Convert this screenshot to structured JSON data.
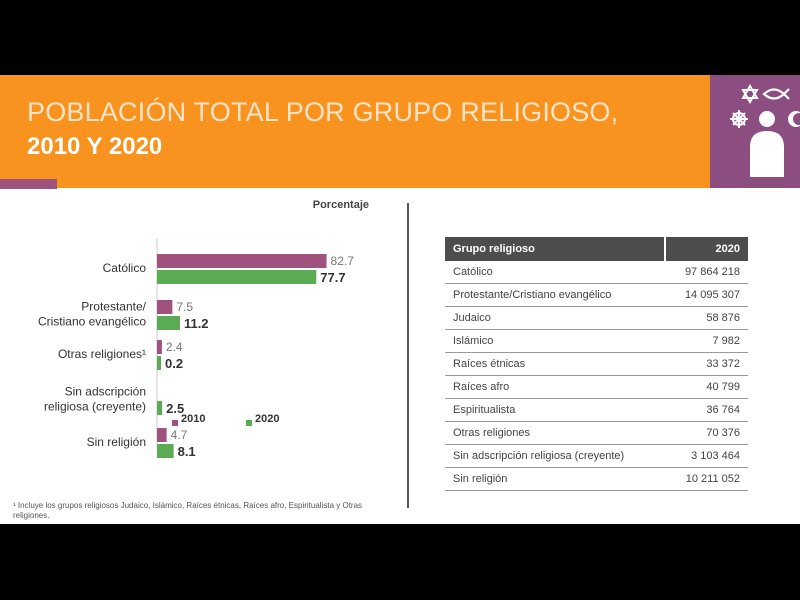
{
  "title": {
    "line1": "POBLACIÓN TOTAL POR GRUPO RELIGIOSO,",
    "line2": "2010 Y 2020"
  },
  "colors": {
    "banner": "#f7931e",
    "accent": "#8c4d80",
    "series_2010": "#a0527f",
    "series_2020": "#5aab54"
  },
  "icons": [
    "star-of-david-icon",
    "christian-fish-icon",
    "dharma-wheel-icon",
    "crescent-icon",
    "person-icon"
  ],
  "chart_data": {
    "type": "bar",
    "orientation": "horizontal",
    "title": "Porcentaje",
    "categories": [
      "Católico",
      "Protestante/ Cristiano evangélico",
      "Otras religiones¹",
      "Sin adscripción religiosa (creyente)",
      "Sin religión"
    ],
    "series": [
      {
        "name": "2010",
        "values": [
          82.7,
          7.5,
          2.4,
          null,
          4.7
        ]
      },
      {
        "name": "2020",
        "values": [
          77.7,
          11.2,
          0.2,
          2.5,
          8.1
        ]
      }
    ],
    "legend": "bottom",
    "grid": false
  },
  "footnote": "¹ Incluye los grupos religiosos Judaico, Islámico, Raíces étnicas, Raíces afro, Espiritualista y Otras religiones.",
  "table": {
    "headers": [
      "Grupo religioso",
      "2020"
    ],
    "rows": [
      [
        "Católico",
        "97 864 218"
      ],
      [
        "Protestante/Cristiano evangélico",
        "14 095 307"
      ],
      [
        "Judaico",
        "58 876"
      ],
      [
        "Islámico",
        "7 982"
      ],
      [
        "Raíces étnicas",
        "33 372"
      ],
      [
        "Raíces afro",
        "40 799"
      ],
      [
        "Espiritualista",
        "36 764"
      ],
      [
        "Otras religiones",
        "70 376"
      ],
      [
        "Sin adscripción religiosa (creyente)",
        "3 103 464"
      ],
      [
        "Sin religión",
        "10 211 052"
      ]
    ]
  }
}
